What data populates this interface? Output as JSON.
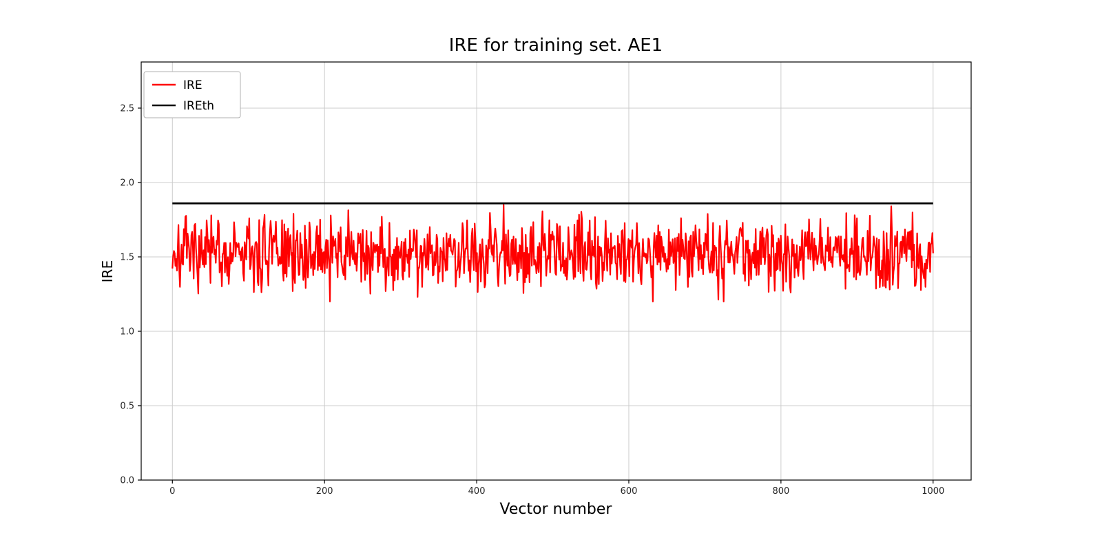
{
  "figure": {
    "title": "IRE for training set. AE1",
    "xlabel": "Vector number",
    "ylabel": "IRE"
  },
  "chart_data": {
    "type": "line",
    "title": "IRE for training set. AE1",
    "xlabel": "Vector number",
    "ylabel": "IRE",
    "xlim": [
      -41,
      1050
    ],
    "ylim": [
      0,
      2.81
    ],
    "xticks": [
      0,
      200,
      400,
      600,
      800,
      1000
    ],
    "xticklabels": [
      "0",
      "200",
      "400",
      "600",
      "800",
      "1000"
    ],
    "yticks": [
      0.0,
      0.5,
      1.0,
      1.5,
      2.0,
      2.5
    ],
    "yticklabels": [
      "0.0",
      "0.5",
      "1.0",
      "1.5",
      "2.0",
      "2.5"
    ],
    "grid": true,
    "grid_color": "#cccccc",
    "legend_position": "upper left",
    "series": [
      {
        "name": "IRE",
        "color": "#ff0000",
        "type": "noise",
        "n": 1000,
        "x_start": 0,
        "x_end": 1000,
        "mean": 1.53,
        "spread": 0.72,
        "seed": 7,
        "observed_min": 1.2,
        "observed_max": 1.86,
        "peak": {
          "x": 435,
          "y": 1.85
        }
      },
      {
        "name": "IREth",
        "color": "#000000",
        "type": "hline",
        "value": 1.86,
        "x_start": 0,
        "x_end": 1000
      }
    ]
  }
}
